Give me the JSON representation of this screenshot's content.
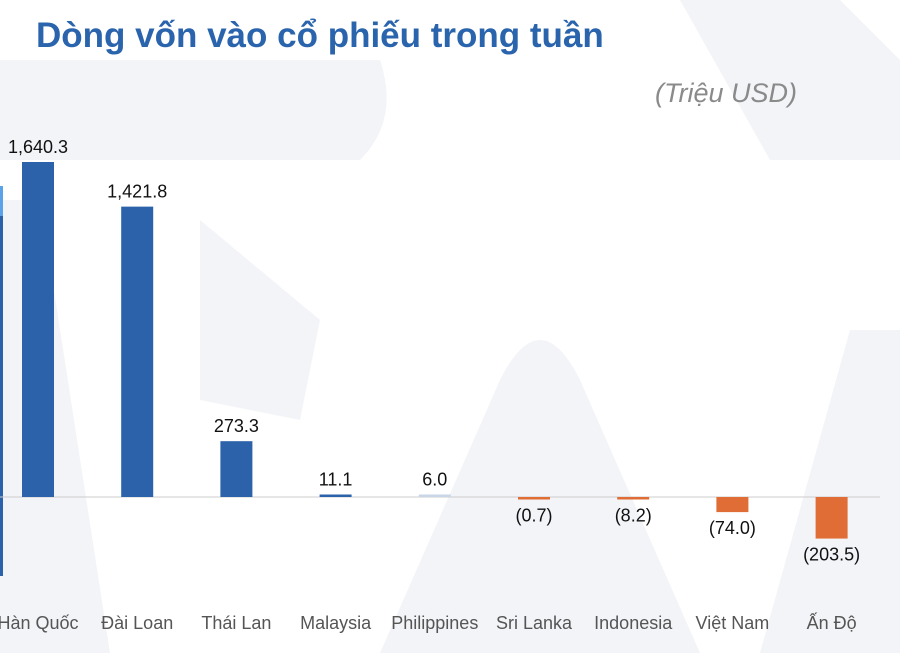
{
  "chart_data": {
    "type": "bar",
    "title": "Dòng vốn vào cổ phiếu trong tuần",
    "unit": "(Triệu USD)",
    "categories": [
      "Hàn Quốc",
      "Đài Loan",
      "Thái Lan",
      "Malaysia",
      "Philippines",
      "Sri Lanka",
      "Indonesia",
      "Việt Nam",
      "Ấn Độ"
    ],
    "values": [
      1640.3,
      1421.8,
      273.3,
      11.1,
      6.0,
      -0.7,
      -8.2,
      -74.0,
      -203.5
    ],
    "data_labels": [
      "1,640.3",
      "1,421.8",
      "273.3",
      "11.1",
      "6.0",
      "(0.7)",
      "(8.2)",
      "(74.0)",
      "(203.5)"
    ],
    "colors": {
      "positive": "#2b62aa",
      "negative": "#e06c36",
      "small_positive": "#c8d6e8",
      "title": "#2a64ad",
      "axis": "#cccccc"
    },
    "grid": false,
    "legend": "none"
  }
}
